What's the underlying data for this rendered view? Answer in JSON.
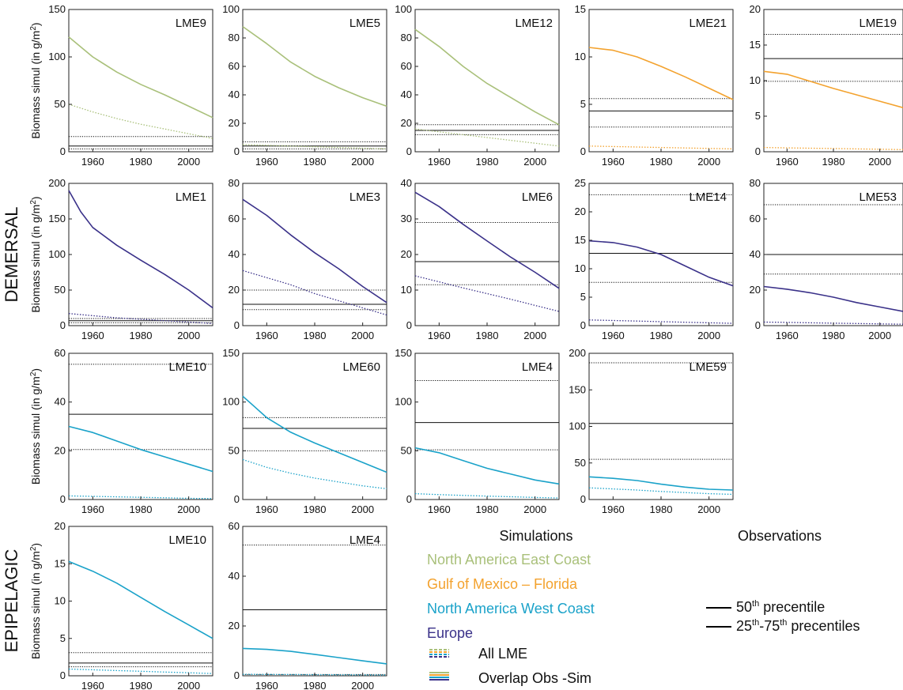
{
  "figure": {
    "y_axis_label": "Biomass simul (in g/m",
    "y_axis_unit_sup": "2",
    "y_axis_label_end": ")",
    "row_labels": [
      "DEMERSAL",
      "EPIPELAGIC"
    ]
  },
  "legend": {
    "simulations_title": "Simulations",
    "observations_title": "Observations",
    "items": [
      {
        "label": "North America East Coast",
        "color": "#a9c07a"
      },
      {
        "label": "Gulf of Mexico – Florida",
        "color": "#f3a22e"
      },
      {
        "label": "North America West Coast",
        "color": "#1aa2c9"
      },
      {
        "label": "Europe",
        "color": "#3a3189"
      }
    ],
    "all_lme": "All LME",
    "overlap": "Overlap Obs -Sim",
    "p50_sup": "th",
    "p50_text": " precentile",
    "p50_num": "50",
    "p2575_a": "25",
    "p2575_sup1": "th",
    "p2575_mid": "-75",
    "p2575_sup2": "th",
    "p2575_text": " precentiles"
  },
  "chart_data": [
    {
      "type": "line",
      "title": "LME9",
      "region": "North America East Coast",
      "color": "#a9c07a",
      "xlim": [
        1950,
        2010
      ],
      "ylim": [
        0,
        150
      ],
      "yticks": [
        0,
        50,
        100,
        150
      ],
      "xticks": [
        1960,
        1980,
        2000
      ],
      "series": [
        {
          "style": "solid",
          "x": [
            1950,
            1960,
            1970,
            1980,
            1990,
            2000,
            2010
          ],
          "y": [
            121,
            100,
            84,
            71,
            60,
            48,
            36
          ]
        },
        {
          "style": "dotted",
          "x": [
            1950,
            1960,
            1970,
            1980,
            1990,
            2000,
            2010
          ],
          "y": [
            50,
            42,
            35,
            29,
            24,
            19,
            14
          ]
        }
      ],
      "obs": {
        "p25": 3,
        "p50": 6,
        "p75": 16
      }
    },
    {
      "type": "line",
      "title": "LME5",
      "region": "North America East Coast",
      "color": "#a9c07a",
      "xlim": [
        1950,
        2010
      ],
      "ylim": [
        0,
        100
      ],
      "yticks": [
        0,
        20,
        40,
        60,
        80,
        100
      ],
      "xticks": [
        1960,
        1980,
        2000
      ],
      "series": [
        {
          "style": "solid",
          "x": [
            1950,
            1960,
            1970,
            1980,
            1990,
            2000,
            2010
          ],
          "y": [
            88,
            76,
            63,
            53,
            45,
            38,
            32
          ]
        },
        {
          "style": "dotted",
          "x": [
            1950,
            1960,
            1970,
            1980,
            1990,
            2000,
            2010
          ],
          "y": [
            5,
            4.5,
            4,
            3.5,
            3,
            2.5,
            2
          ]
        }
      ],
      "obs": {
        "p25": 2,
        "p50": 4,
        "p75": 7
      }
    },
    {
      "type": "line",
      "title": "LME12",
      "region": "North America East Coast",
      "color": "#a9c07a",
      "xlim": [
        1950,
        2010
      ],
      "ylim": [
        0,
        100
      ],
      "yticks": [
        0,
        20,
        40,
        60,
        80,
        100
      ],
      "xticks": [
        1960,
        1980,
        2000
      ],
      "series": [
        {
          "style": "solid",
          "x": [
            1950,
            1960,
            1970,
            1980,
            1990,
            2000,
            2010
          ],
          "y": [
            86,
            74,
            60,
            48,
            38,
            28,
            19
          ]
        },
        {
          "style": "dotted",
          "x": [
            1950,
            1960,
            1970,
            1980,
            1990,
            2000,
            2010
          ],
          "y": [
            16,
            14,
            12,
            10,
            8,
            6,
            4
          ]
        }
      ],
      "obs": {
        "p25": 12,
        "p50": 15,
        "p75": 19
      }
    },
    {
      "type": "line",
      "title": "LME21",
      "region": "Gulf of Mexico – Florida",
      "color": "#f3a22e",
      "xlim": [
        1950,
        2010
      ],
      "ylim": [
        0,
        15
      ],
      "yticks": [
        0,
        5,
        10,
        15
      ],
      "xticks": [
        1960,
        1980,
        2000
      ],
      "series": [
        {
          "style": "solid",
          "x": [
            1950,
            1960,
            1970,
            1980,
            1990,
            2000,
            2010
          ],
          "y": [
            11,
            10.7,
            10,
            9,
            7.9,
            6.7,
            5.5
          ]
        },
        {
          "style": "dotted",
          "x": [
            1950,
            1960,
            1970,
            1980,
            1990,
            2000,
            2010
          ],
          "y": [
            0.6,
            0.55,
            0.5,
            0.45,
            0.4,
            0.35,
            0.3
          ]
        }
      ],
      "obs": {
        "p25": 2.6,
        "p50": 4.3,
        "p75": 5.6
      }
    },
    {
      "type": "line",
      "title": "LME19",
      "region": "Gulf of Mexico – Florida",
      "color": "#f3a22e",
      "xlim": [
        1950,
        2010
      ],
      "ylim": [
        0,
        20
      ],
      "yticks": [
        0,
        5,
        10,
        15,
        20
      ],
      "xticks": [
        1960,
        1980,
        2000
      ],
      "series": [
        {
          "style": "solid",
          "x": [
            1950,
            1960,
            1970,
            1980,
            1990,
            2000,
            2010
          ],
          "y": [
            11.3,
            10.9,
            9.9,
            8.9,
            8,
            7.1,
            6.2
          ]
        },
        {
          "style": "dotted",
          "x": [
            1950,
            1960,
            1970,
            1980,
            1990,
            2000,
            2010
          ],
          "y": [
            0.6,
            0.55,
            0.5,
            0.45,
            0.4,
            0.35,
            0.3
          ]
        }
      ],
      "obs": {
        "p25": 9.9,
        "p50": 13.1,
        "p75": 16.5
      }
    },
    {
      "type": "line",
      "title": "LME1",
      "region": "Europe",
      "color": "#3a3189",
      "xlim": [
        1950,
        2010
      ],
      "ylim": [
        0,
        200
      ],
      "yticks": [
        0,
        50,
        100,
        150,
        200
      ],
      "xticks": [
        1960,
        1980,
        2000
      ],
      "series": [
        {
          "style": "solid",
          "x": [
            1950,
            1955,
            1960,
            1970,
            1980,
            1990,
            2000,
            2010
          ],
          "y": [
            190,
            160,
            138,
            113,
            92,
            72,
            50,
            25
          ]
        },
        {
          "style": "dotted",
          "x": [
            1950,
            1960,
            1970,
            1980,
            1990,
            2000,
            2010
          ],
          "y": [
            17,
            14,
            11,
            9,
            7,
            5,
            3
          ]
        }
      ],
      "obs": {
        "p25": 4,
        "p50": 7,
        "p75": 10
      }
    },
    {
      "type": "line",
      "title": "LME3",
      "region": "Europe",
      "color": "#3a3189",
      "xlim": [
        1950,
        2010
      ],
      "ylim": [
        0,
        80
      ],
      "yticks": [
        0,
        20,
        40,
        60,
        80
      ],
      "xticks": [
        1960,
        1980,
        2000
      ],
      "series": [
        {
          "style": "solid",
          "x": [
            1950,
            1960,
            1970,
            1980,
            1990,
            2000,
            2010
          ],
          "y": [
            71,
            62,
            51,
            41,
            32,
            22,
            13
          ]
        },
        {
          "style": "dotted",
          "x": [
            1950,
            1960,
            1970,
            1980,
            1990,
            2000,
            2010
          ],
          "y": [
            31,
            27,
            23,
            18,
            14,
            10,
            6
          ]
        }
      ],
      "obs": {
        "p25": 9,
        "p50": 12,
        "p75": 20
      }
    },
    {
      "type": "line",
      "title": "LME6",
      "region": "Europe",
      "color": "#3a3189",
      "xlim": [
        1950,
        2010
      ],
      "ylim": [
        0,
        40
      ],
      "yticks": [
        0,
        10,
        20,
        30,
        40
      ],
      "xticks": [
        1960,
        1980,
        2000
      ],
      "series": [
        {
          "style": "solid",
          "x": [
            1950,
            1960,
            1970,
            1980,
            1990,
            2000,
            2010
          ],
          "y": [
            37.5,
            33.5,
            28.5,
            23.8,
            19.2,
            15,
            10.5
          ]
        },
        {
          "style": "dotted",
          "x": [
            1950,
            1960,
            1970,
            1980,
            1990,
            2000,
            2010
          ],
          "y": [
            14,
            12.3,
            10.6,
            9,
            7.4,
            5.7,
            4
          ]
        }
      ],
      "obs": {
        "p25": 11.5,
        "p50": 18,
        "p75": 29
      }
    },
    {
      "type": "line",
      "title": "LME14",
      "region": "Europe",
      "color": "#3a3189",
      "xlim": [
        1950,
        2010
      ],
      "ylim": [
        0,
        25
      ],
      "yticks": [
        0,
        5,
        10,
        15,
        20,
        25
      ],
      "xticks": [
        1960,
        1980,
        2000
      ],
      "series": [
        {
          "style": "solid",
          "x": [
            1950,
            1960,
            1970,
            1980,
            1990,
            2000,
            2010
          ],
          "y": [
            14.9,
            14.6,
            13.8,
            12.5,
            10.5,
            8.5,
            7
          ]
        },
        {
          "style": "dotted",
          "x": [
            1950,
            1960,
            1970,
            1980,
            1990,
            2000,
            2010
          ],
          "y": [
            1,
            0.9,
            0.8,
            0.7,
            0.6,
            0.5,
            0.4
          ]
        }
      ],
      "obs": {
        "p25": 7.6,
        "p50": 12.7,
        "p75": 23
      }
    },
    {
      "type": "line",
      "title": "LME53",
      "region": "Europe",
      "color": "#3a3189",
      "xlim": [
        1950,
        2010
      ],
      "ylim": [
        0,
        80
      ],
      "yticks": [
        0,
        20,
        40,
        60,
        80
      ],
      "xticks": [
        1960,
        1980,
        2000
      ],
      "series": [
        {
          "style": "solid",
          "x": [
            1950,
            1960,
            1970,
            1980,
            1990,
            2000,
            2010
          ],
          "y": [
            22,
            20.5,
            18.5,
            16,
            13,
            10.5,
            8
          ]
        },
        {
          "style": "dotted",
          "x": [
            1950,
            1960,
            1970,
            1980,
            1990,
            2000,
            2010
          ],
          "y": [
            2,
            1.8,
            1.6,
            1.4,
            1.2,
            1,
            0.8
          ]
        }
      ],
      "obs": {
        "p25": 29,
        "p50": 40,
        "p75": 68
      }
    },
    {
      "type": "line",
      "title": "LME10",
      "region": "North America West Coast",
      "color": "#1aa2c9",
      "xlim": [
        1950,
        2010
      ],
      "ylim": [
        0,
        60
      ],
      "yticks": [
        0,
        20,
        40,
        60
      ],
      "xticks": [
        1960,
        1980,
        2000
      ],
      "series": [
        {
          "style": "solid",
          "x": [
            1950,
            1960,
            1970,
            1980,
            1990,
            2000,
            2010
          ],
          "y": [
            30,
            27.5,
            24,
            20.5,
            17.5,
            14.5,
            11.5
          ]
        },
        {
          "style": "dotted",
          "x": [
            1950,
            1960,
            1970,
            1980,
            1990,
            2000,
            2010
          ],
          "y": [
            1.5,
            1.3,
            1.1,
            0.9,
            0.7,
            0.5,
            0.4
          ]
        }
      ],
      "obs": {
        "p25": 20.5,
        "p50": 35,
        "p75": 55.5
      }
    },
    {
      "type": "line",
      "title": "LME60",
      "region": "North America West Coast",
      "color": "#1aa2c9",
      "xlim": [
        1950,
        2010
      ],
      "ylim": [
        0,
        150
      ],
      "yticks": [
        0,
        50,
        100,
        150
      ],
      "xticks": [
        1960,
        1980,
        2000
      ],
      "series": [
        {
          "style": "solid",
          "x": [
            1950,
            1955,
            1960,
            1970,
            1980,
            1990,
            2000,
            2010
          ],
          "y": [
            106,
            95,
            84,
            69,
            58,
            48,
            38,
            28
          ]
        },
        {
          "style": "dotted",
          "x": [
            1950,
            1960,
            1970,
            1980,
            1990,
            2000,
            2010
          ],
          "y": [
            41,
            33,
            27,
            22,
            18,
            14,
            11
          ]
        }
      ],
      "obs": {
        "p25": 50,
        "p50": 73,
        "p75": 84
      }
    },
    {
      "type": "line",
      "title": "LME4",
      "region": "North America West Coast",
      "color": "#1aa2c9",
      "xlim": [
        1950,
        2010
      ],
      "ylim": [
        0,
        150
      ],
      "yticks": [
        0,
        50,
        100,
        150
      ],
      "xticks": [
        1960,
        1980,
        2000
      ],
      "series": [
        {
          "style": "solid",
          "x": [
            1950,
            1960,
            1970,
            1980,
            1990,
            2000,
            2010
          ],
          "y": [
            53,
            48,
            40,
            32,
            26,
            20,
            16
          ]
        },
        {
          "style": "dotted",
          "x": [
            1950,
            1960,
            1970,
            1980,
            1990,
            2000,
            2010
          ],
          "y": [
            6,
            5,
            4.2,
            3.5,
            2.8,
            2.1,
            1.5
          ]
        }
      ],
      "obs": {
        "p25": 51,
        "p50": 79,
        "p75": 122
      }
    },
    {
      "type": "line",
      "title": "LME59",
      "region": "North America West Coast",
      "color": "#1aa2c9",
      "xlim": [
        1950,
        2010
      ],
      "ylim": [
        0,
        200
      ],
      "yticks": [
        0,
        50,
        100,
        150,
        200
      ],
      "xticks": [
        1960,
        1980,
        2000
      ],
      "series": [
        {
          "style": "solid",
          "x": [
            1950,
            1960,
            1970,
            1980,
            1990,
            2000,
            2010
          ],
          "y": [
            31,
            29,
            26,
            21,
            17,
            14,
            13
          ]
        },
        {
          "style": "dotted",
          "x": [
            1950,
            1960,
            1970,
            1980,
            1990,
            2000,
            2010
          ],
          "y": [
            16,
            14.5,
            13,
            11,
            9.5,
            8,
            7
          ]
        }
      ],
      "obs": {
        "p25": 55,
        "p50": 104,
        "p75": 187
      }
    },
    {
      "type": "line",
      "title": "LME10",
      "region": "North America West Coast",
      "color": "#1aa2c9",
      "xlim": [
        1950,
        2010
      ],
      "ylim": [
        0,
        20
      ],
      "yticks": [
        0,
        5,
        10,
        15,
        20
      ],
      "xticks": [
        1960,
        1980,
        2000
      ],
      "series": [
        {
          "style": "solid",
          "x": [
            1950,
            1960,
            1970,
            1980,
            1990,
            2000,
            2010
          ],
          "y": [
            15.3,
            14,
            12.4,
            10.5,
            8.6,
            6.8,
            5
          ]
        },
        {
          "style": "dotted",
          "x": [
            1950,
            1960,
            1970,
            1980,
            1990,
            2000,
            2010
          ],
          "y": [
            0.9,
            0.8,
            0.7,
            0.6,
            0.5,
            0.4,
            0.3
          ]
        }
      ],
      "obs": {
        "p25": 1.2,
        "p50": 1.7,
        "p75": 3.1
      }
    },
    {
      "type": "line",
      "title": "LME4",
      "region": "North America West Coast",
      "color": "#1aa2c9",
      "xlim": [
        1950,
        2010
      ],
      "ylim": [
        0,
        60
      ],
      "yticks": [
        0,
        20,
        40,
        60
      ],
      "xticks": [
        1960,
        1980,
        2000
      ],
      "series": [
        {
          "style": "solid",
          "x": [
            1950,
            1960,
            1970,
            1980,
            1990,
            2000,
            2010
          ],
          "y": [
            11,
            10.6,
            9.8,
            8.6,
            7.3,
            6,
            4.8
          ]
        },
        {
          "style": "dotted",
          "x": [
            1950,
            1960,
            1970,
            1980,
            1990,
            2000,
            2010
          ],
          "y": [
            0.6,
            0.55,
            0.5,
            0.45,
            0.4,
            0.35,
            0.3
          ]
        }
      ],
      "obs": {
        "p25": 0.5,
        "p50": 26.5,
        "p75": 52.5
      }
    }
  ]
}
